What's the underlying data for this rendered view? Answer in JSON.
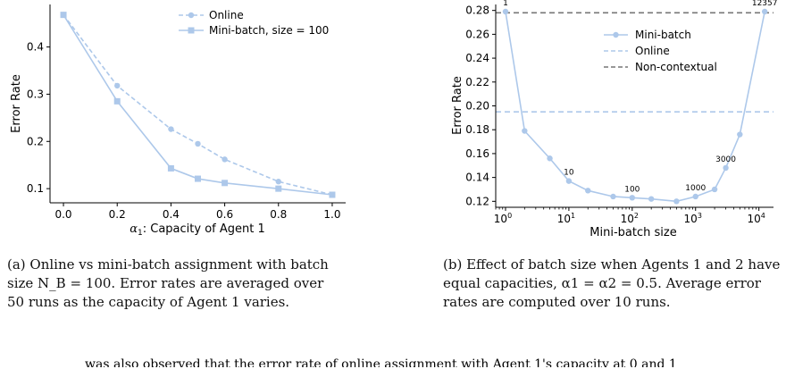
{
  "colors": {
    "series": "#adc8ea",
    "non_contextual": "#777777",
    "axis": "#000000"
  },
  "captions": {
    "a": "(a) Online vs mini-batch assignment with batch size N_B = 100. Error rates are averaged over 50 runs as the capacity of Agent 1 varies.",
    "b": "(b) Effect of batch size when Agents 1 and 2 have equal capacities, α1 = α2 = 0.5. Average error rates are computed over 10 runs."
  },
  "footnote": "was also observed that the error rate of online assignment with Agent 1's capacity at 0 and 1",
  "chart_data": [
    {
      "type": "line",
      "xlabel": "α1: Capacity of Agent 1",
      "ylabel": "Error Rate",
      "xlim": [
        -0.05,
        1.05
      ],
      "ylim": [
        0.07,
        0.49
      ],
      "xticks": [
        0.0,
        0.2,
        0.4,
        0.6,
        0.8,
        1.0
      ],
      "xtick_labels": [
        "0.0",
        "0.2",
        "0.4",
        "0.6",
        "0.8",
        "1.0"
      ],
      "yticks": [
        0.1,
        0.2,
        0.3,
        0.4
      ],
      "ytick_labels": [
        "0.1",
        "0.2",
        "0.3",
        "0.4"
      ],
      "grid": false,
      "legend_position": "top-right",
      "series": [
        {
          "name": "Online",
          "style": "dashed",
          "marker": "circle",
          "x": [
            0.0,
            0.2,
            0.4,
            0.5,
            0.6,
            0.8,
            1.0
          ],
          "y": [
            0.468,
            0.318,
            0.226,
            0.195,
            0.162,
            0.115,
            0.087
          ]
        },
        {
          "name": "Mini-batch, size = 100",
          "style": "solid",
          "marker": "square",
          "x": [
            0.0,
            0.2,
            0.4,
            0.5,
            0.6,
            0.8,
            1.0
          ],
          "y": [
            0.468,
            0.285,
            0.143,
            0.121,
            0.112,
            0.1,
            0.087
          ]
        }
      ]
    },
    {
      "type": "line",
      "xlabel": "Mini-batch size",
      "ylabel": "Error Rate",
      "xscale": "log",
      "xlim": [
        0.7,
        17000
      ],
      "ylim": [
        0.115,
        0.285
      ],
      "xticks": [
        1,
        10,
        100,
        1000,
        10000
      ],
      "xtick_labels": [
        "10^0",
        "10^1",
        "10^2",
        "10^3",
        "10^4"
      ],
      "yticks": [
        0.12,
        0.14,
        0.16,
        0.18,
        0.2,
        0.22,
        0.24,
        0.26,
        0.28
      ],
      "ytick_labels": [
        "0.12",
        "0.14",
        "0.16",
        "0.18",
        "0.20",
        "0.22",
        "0.24",
        "0.26",
        "0.28"
      ],
      "grid": false,
      "legend_position": "top-right",
      "series": [
        {
          "name": "Mini-batch",
          "style": "solid",
          "marker": "circle",
          "x": [
            1,
            2,
            5,
            10,
            20,
            50,
            100,
            200,
            500,
            1000,
            2000,
            3000,
            5000,
            12357
          ],
          "y": [
            0.279,
            0.179,
            0.156,
            0.137,
            0.129,
            0.124,
            0.123,
            0.122,
            0.12,
            0.124,
            0.13,
            0.148,
            0.176,
            0.279
          ]
        },
        {
          "name": "Online",
          "style": "dashed",
          "hline": 0.195
        },
        {
          "name": "Non-contextual",
          "style": "dashed",
          "hline": 0.278
        }
      ],
      "annotations": [
        {
          "text": "1",
          "x": 1,
          "y": 0.279
        },
        {
          "text": "10",
          "x": 10,
          "y": 0.137
        },
        {
          "text": "100",
          "x": 100,
          "y": 0.123
        },
        {
          "text": "1000",
          "x": 1000,
          "y": 0.124
        },
        {
          "text": "3000",
          "x": 3000,
          "y": 0.148
        },
        {
          "text": "12357",
          "x": 12357,
          "y": 0.279
        }
      ]
    }
  ]
}
